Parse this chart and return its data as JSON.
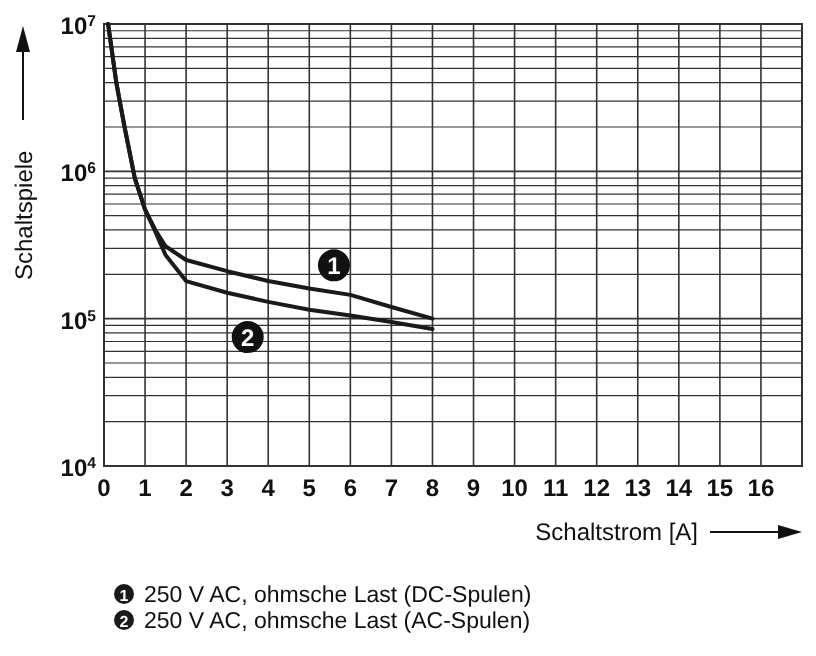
{
  "chart_data": {
    "type": "line",
    "xlabel": "Schaltstrom [A]",
    "ylabel": "Schaltspiele",
    "log": "y",
    "grid": true,
    "legend": "bottom",
    "line_style": "solid",
    "marker": "none",
    "xlim": [
      0,
      17
    ],
    "xticks": [
      0,
      1,
      2,
      3,
      4,
      5,
      6,
      7,
      8,
      9,
      10,
      11,
      12,
      13,
      14,
      15,
      16
    ],
    "ylim": [
      10000,
      10000000
    ],
    "yticks": [
      {
        "value": 10000,
        "label": "10$^{4}$"
      },
      {
        "value": 100000,
        "label": "10$^{5}$"
      },
      {
        "value": 1000000,
        "label": "10$^{6}$"
      },
      {
        "value": 10000000,
        "label": "10$^{7}$"
      }
    ],
    "series": [
      {
        "name": "250 V AC, ohmsche Last (DC-Spulen)",
        "color": "#1a1a1a",
        "x": [
          0.1,
          0.3,
          0.5,
          0.75,
          1,
          1.25,
          1.5,
          2,
          3,
          4,
          5,
          6,
          7,
          8
        ],
        "values": [
          10000000,
          4000000,
          2000000,
          900000,
          550000,
          400000,
          310000,
          250000,
          210000,
          180000,
          160000,
          145000,
          120000,
          100000
        ]
      },
      {
        "name": "250 V AC, ohmsche Last (AC-Spulen)",
        "color": "#1a1a1a",
        "x": [
          0.1,
          0.3,
          0.5,
          0.75,
          1,
          1.25,
          1.5,
          2,
          3,
          4,
          5,
          6,
          7,
          8
        ],
        "values": [
          10000000,
          4000000,
          2000000,
          900000,
          550000,
          390000,
          270000,
          180000,
          150000,
          130000,
          115000,
          105000,
          95000,
          85000
        ]
      }
    ],
    "annotations": [
      {
        "text": "1",
        "x": 5.6,
        "y": 230000
      },
      {
        "text": "2",
        "x": 3.5,
        "y": 75000
      }
    ]
  }
}
